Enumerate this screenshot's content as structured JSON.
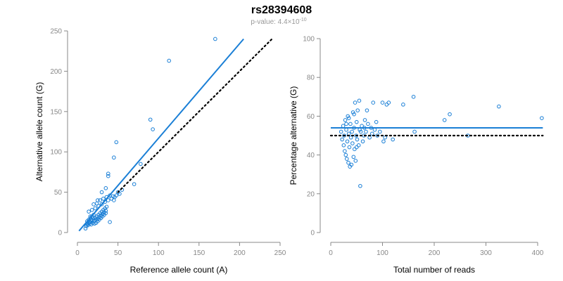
{
  "title": "rs28394608",
  "subtitle": {
    "prefix": "p-value: 4.4×10",
    "exponent": "-10"
  },
  "colors": {
    "points": "#1a7fd6",
    "fit_line": "#1a7fd6",
    "reference_line": "#000000"
  },
  "chart_data": [
    {
      "type": "scatter",
      "title": "",
      "xlabel": "Reference allele count (A)",
      "ylabel": "Alternative allele count (G)",
      "xlim": [
        0,
        250
      ],
      "ylim": [
        0,
        250
      ],
      "xticks": [
        0,
        50,
        100,
        150,
        200,
        250
      ],
      "yticks": [
        0,
        50,
        100,
        150,
        200,
        250
      ],
      "grid": false,
      "fit_line": {
        "x": [
          2,
          205
        ],
        "y": [
          2,
          240
        ],
        "style": "solid"
      },
      "reference_line": {
        "x": [
          50,
          240
        ],
        "y": [
          50,
          240
        ],
        "style": "dotted"
      },
      "points": [
        [
          10,
          5
        ],
        [
          11,
          8
        ],
        [
          12,
          10
        ],
        [
          13,
          9
        ],
        [
          14,
          12
        ],
        [
          15,
          11
        ],
        [
          16,
          13
        ],
        [
          17,
          10
        ],
        [
          18,
          15
        ],
        [
          19,
          12
        ],
        [
          20,
          14
        ],
        [
          21,
          11
        ],
        [
          22,
          18
        ],
        [
          23,
          16
        ],
        [
          24,
          20
        ],
        [
          25,
          17
        ],
        [
          26,
          22
        ],
        [
          27,
          19
        ],
        [
          28,
          24
        ],
        [
          29,
          21
        ],
        [
          30,
          26
        ],
        [
          31,
          23
        ],
        [
          32,
          28
        ],
        [
          33,
          25
        ],
        [
          34,
          30
        ],
        [
          35,
          27
        ],
        [
          36,
          32
        ],
        [
          12,
          14
        ],
        [
          14,
          16
        ],
        [
          16,
          18
        ],
        [
          18,
          20
        ],
        [
          13,
          11
        ],
        [
          15,
          13
        ],
        [
          17,
          16
        ],
        [
          19,
          18
        ],
        [
          21,
          15
        ],
        [
          23,
          12
        ],
        [
          25,
          14
        ],
        [
          27,
          16
        ],
        [
          29,
          18
        ],
        [
          31,
          20
        ],
        [
          33,
          22
        ],
        [
          35,
          24
        ],
        [
          14,
          26
        ],
        [
          18,
          28
        ],
        [
          22,
          30
        ],
        [
          26,
          33
        ],
        [
          30,
          35
        ],
        [
          34,
          38
        ],
        [
          38,
          40
        ],
        [
          20,
          35
        ],
        [
          25,
          40
        ],
        [
          30,
          50
        ],
        [
          35,
          55
        ],
        [
          38,
          70
        ],
        [
          38,
          73
        ],
        [
          40,
          13
        ],
        [
          45,
          40
        ],
        [
          48,
          46
        ],
        [
          50,
          50
        ],
        [
          52,
          48
        ],
        [
          55,
          53
        ],
        [
          45,
          93
        ],
        [
          48,
          112
        ],
        [
          70,
          60
        ],
        [
          78,
          85
        ],
        [
          90,
          140
        ],
        [
          93,
          128
        ],
        [
          113,
          213
        ],
        [
          170,
          240
        ],
        [
          42,
          42
        ],
        [
          44,
          45
        ],
        [
          46,
          44
        ],
        [
          24,
          36
        ],
        [
          28,
          40
        ],
        [
          32,
          42
        ],
        [
          36,
          44
        ],
        [
          40,
          46
        ],
        [
          16,
          20
        ],
        [
          20,
          22
        ]
      ]
    },
    {
      "type": "scatter",
      "title": "",
      "xlabel": "Total number of reads",
      "ylabel": "Percentage alternative (G)",
      "xlim": [
        0,
        400
      ],
      "ylim": [
        0,
        100
      ],
      "xticks": [
        0,
        100,
        200,
        300,
        400
      ],
      "yticks": [
        0,
        20,
        40,
        60,
        80,
        100
      ],
      "grid": false,
      "fit_line": {
        "x": [
          0,
          410
        ],
        "y": [
          54,
          54
        ],
        "style": "solid"
      },
      "reference_line": {
        "x": [
          0,
          410
        ],
        "y": [
          50,
          50
        ],
        "style": "dotted"
      },
      "points": [
        [
          20,
          52
        ],
        [
          22,
          48
        ],
        [
          24,
          55
        ],
        [
          25,
          45
        ],
        [
          26,
          50
        ],
        [
          27,
          42
        ],
        [
          28,
          58
        ],
        [
          29,
          40
        ],
        [
          30,
          53
        ],
        [
          31,
          38
        ],
        [
          32,
          47
        ],
        [
          33,
          60
        ],
        [
          34,
          36
        ],
        [
          35,
          51
        ],
        [
          36,
          44
        ],
        [
          37,
          34
        ],
        [
          38,
          56
        ],
        [
          39,
          49
        ],
        [
          40,
          35
        ],
        [
          41,
          52
        ],
        [
          42,
          46
        ],
        [
          43,
          62
        ],
        [
          44,
          39
        ],
        [
          45,
          54
        ],
        [
          46,
          43
        ],
        [
          47,
          67
        ],
        [
          48,
          37
        ],
        [
          49,
          50
        ],
        [
          50,
          57
        ],
        [
          51,
          48
        ],
        [
          52,
          63
        ],
        [
          54,
          45
        ],
        [
          55,
          68
        ],
        [
          56,
          53
        ],
        [
          57,
          24
        ],
        [
          58,
          52
        ],
        [
          60,
          55
        ],
        [
          62,
          47
        ],
        [
          64,
          50
        ],
        [
          66,
          58
        ],
        [
          68,
          52
        ],
        [
          70,
          63
        ],
        [
          72,
          56
        ],
        [
          75,
          49
        ],
        [
          78,
          54
        ],
        [
          80,
          51
        ],
        [
          82,
          67
        ],
        [
          85,
          53
        ],
        [
          88,
          57
        ],
        [
          90,
          50
        ],
        [
          95,
          52
        ],
        [
          100,
          67
        ],
        [
          102,
          47
        ],
        [
          105,
          49
        ],
        [
          108,
          66
        ],
        [
          112,
          67
        ],
        [
          120,
          48
        ],
        [
          140,
          66
        ],
        [
          160,
          70
        ],
        [
          162,
          52
        ],
        [
          220,
          58
        ],
        [
          230,
          61
        ],
        [
          265,
          50
        ],
        [
          325,
          65
        ],
        [
          408,
          59
        ],
        [
          30,
          56
        ],
        [
          35,
          59
        ],
        [
          45,
          61
        ],
        [
          50,
          44
        ],
        [
          65,
          54
        ]
      ]
    }
  ]
}
